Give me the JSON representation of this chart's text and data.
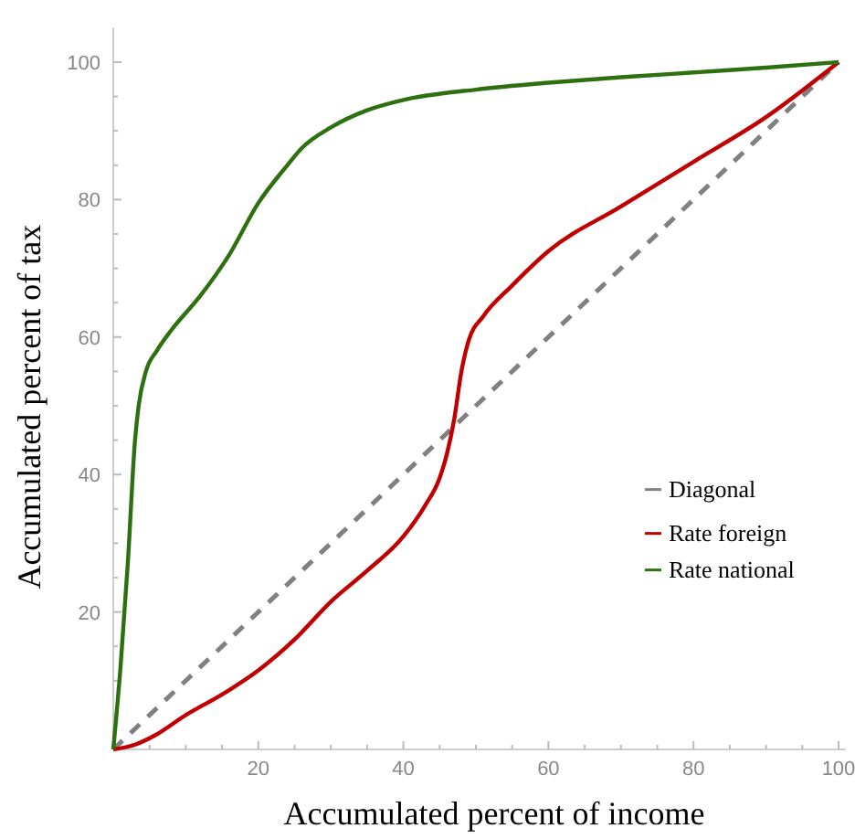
{
  "chart_data": {
    "type": "line",
    "xlabel": "Accumulated percent of income",
    "ylabel": "Accumulated percent of tax",
    "xlim": [
      0,
      101
    ],
    "ylim": [
      0,
      105
    ],
    "xticks": [
      {
        "value": 5,
        "label": null
      },
      {
        "value": 10,
        "label": null
      },
      {
        "value": 15,
        "label": null
      },
      20,
      {
        "value": 25,
        "label": null
      },
      {
        "value": 30,
        "label": null
      },
      {
        "value": 35,
        "label": null
      },
      40,
      {
        "value": 45,
        "label": null
      },
      {
        "value": 50,
        "label": null
      },
      {
        "value": 55,
        "label": null
      },
      60,
      {
        "value": 65,
        "label": null
      },
      {
        "value": 70,
        "label": null
      },
      {
        "value": 75,
        "label": null
      },
      80,
      {
        "value": 85,
        "label": null
      },
      {
        "value": 90,
        "label": null
      },
      {
        "value": 95,
        "label": null
      },
      100
    ],
    "yticks": [
      {
        "value": 5,
        "label": null
      },
      {
        "value": 10,
        "label": null
      },
      {
        "value": 15,
        "label": null
      },
      20,
      {
        "value": 25,
        "label": null
      },
      {
        "value": 30,
        "label": null
      },
      {
        "value": 35,
        "label": null
      },
      40,
      {
        "value": 45,
        "label": null
      },
      {
        "value": 50,
        "label": null
      },
      {
        "value": 55,
        "label": null
      },
      60,
      {
        "value": 65,
        "label": null
      },
      {
        "value": 70,
        "label": null
      },
      {
        "value": 75,
        "label": null
      },
      80,
      {
        "value": 85,
        "label": null
      },
      {
        "value": 90,
        "label": null
      },
      {
        "value": 95,
        "label": null
      },
      100
    ],
    "grid": false,
    "legend": "bottom right",
    "marker": "none",
    "series": [
      {
        "name": "Diagonal",
        "color": "#808080",
        "line_style": "dashed",
        "x": [
          0,
          100
        ],
        "values": [
          0,
          100
        ]
      },
      {
        "name": "Rate foreign",
        "color": "#c00000",
        "line_style": "solid",
        "x": [
          0,
          3,
          6,
          10,
          15,
          20,
          25,
          30,
          35,
          40,
          43,
          45,
          46,
          47,
          48,
          49,
          51,
          55,
          60,
          70,
          80,
          90,
          100
        ],
        "values": [
          0,
          0.7,
          2.2,
          5,
          8,
          11.5,
          16,
          21.5,
          26,
          31,
          35.5,
          39.5,
          43,
          48,
          55,
          59.5,
          63,
          67.5,
          72.5,
          79,
          85.5,
          92,
          100
        ]
      },
      {
        "name": "Rate national",
        "color": "#2d7010",
        "line_style": "solid",
        "x": [
          0,
          1,
          2,
          3,
          3.5,
          4.5,
          6,
          8,
          12,
          16,
          20,
          24,
          26,
          30,
          35,
          40,
          50,
          60,
          70,
          80,
          90,
          100
        ],
        "values": [
          0,
          12,
          27,
          45,
          50,
          55,
          58,
          61,
          66,
          72,
          79.5,
          85,
          87.5,
          90.5,
          93,
          94.5,
          96,
          97,
          97.8,
          98.5,
          99.2,
          100
        ]
      }
    ]
  }
}
